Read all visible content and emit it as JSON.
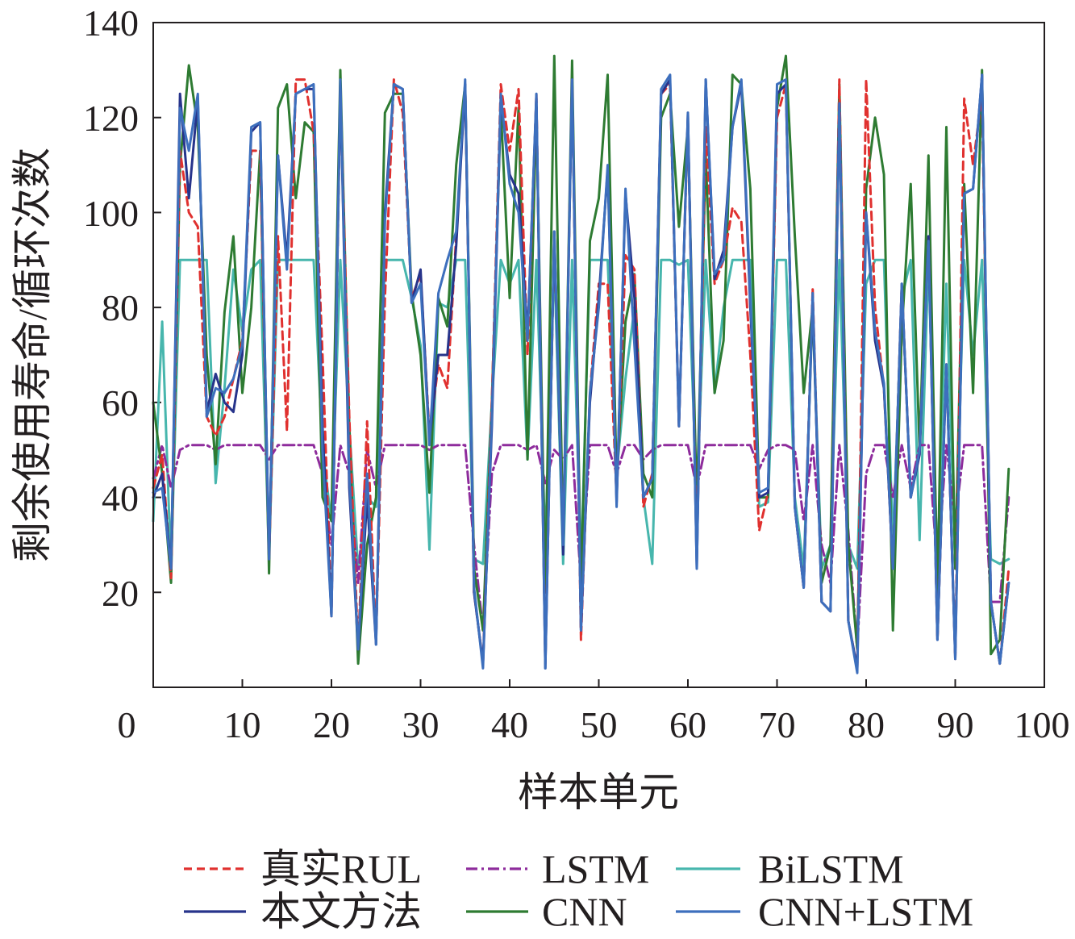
{
  "chart_data": {
    "type": "line",
    "xlabel": "样本单元",
    "ylabel": "剩余使用寿命/循环次数",
    "xlim": [
      0,
      100
    ],
    "ylim": [
      0,
      140
    ],
    "x_ticks": [
      "0",
      "10",
      "20",
      "30",
      "40",
      "50",
      "60",
      "70",
      "80",
      "90",
      "100"
    ],
    "y_ticks": [
      "20",
      "40",
      "60",
      "80",
      "100",
      "120",
      "140"
    ],
    "grid": false,
    "legend": "bottom",
    "x": [
      0,
      1,
      2,
      3,
      4,
      5,
      6,
      7,
      8,
      9,
      10,
      11,
      12,
      13,
      14,
      15,
      16,
      17,
      18,
      19,
      20,
      21,
      22,
      23,
      24,
      25,
      26,
      27,
      28,
      29,
      30,
      31,
      32,
      33,
      34,
      35,
      36,
      37,
      38,
      39,
      40,
      41,
      42,
      43,
      44,
      45,
      46,
      47,
      48,
      49,
      50,
      51,
      52,
      53,
      54,
      55,
      56,
      57,
      58,
      59,
      60,
      61,
      62,
      63,
      64,
      65,
      66,
      67,
      68,
      69,
      70,
      71,
      72,
      73,
      74,
      75,
      76,
      77,
      78,
      79,
      80,
      81,
      82,
      83,
      84,
      85,
      86,
      87,
      88,
      89,
      90,
      91,
      92,
      93,
      94,
      95,
      96
    ],
    "series": [
      {
        "name": "真实RUL",
        "color": "#e0312f",
        "style": "dashed",
        "values": [
          42,
          49,
          23,
          113,
          100,
          97,
          57,
          53,
          57,
          65,
          73,
          113,
          113,
          27,
          95,
          54,
          128,
          128,
          117,
          70,
          15,
          126,
          57,
          8,
          56,
          10,
          82,
          128,
          121,
          82,
          87,
          53,
          68,
          63,
          95,
          127,
          20,
          5,
          60,
          127,
          113,
          126,
          70,
          125,
          5,
          95,
          30,
          128,
          10,
          62,
          85,
          85,
          40,
          91,
          88,
          38,
          45,
          125,
          127,
          55,
          120,
          28,
          118,
          85,
          90,
          101,
          98,
          70,
          33,
          41,
          120,
          127,
          38,
          21,
          84,
          18,
          16,
          128,
          14,
          4,
          128,
          80,
          63,
          25,
          85,
          40,
          50,
          95,
          10,
          68,
          6,
          124,
          110,
          125,
          18,
          5,
          25
        ]
      },
      {
        "name": "LSTM",
        "color": "#8e2c9c",
        "style": "dashdot",
        "values": [
          44,
          51,
          42,
          50,
          51,
          51,
          51,
          50,
          51,
          51,
          51,
          51,
          51,
          48,
          51,
          51,
          51,
          51,
          51,
          45,
          30,
          51,
          45,
          22,
          50,
          42,
          51,
          51,
          51,
          51,
          51,
          50,
          51,
          51,
          51,
          51,
          30,
          12,
          45,
          51,
          51,
          51,
          50,
          51,
          43,
          50,
          48,
          51,
          22,
          51,
          51,
          51,
          45,
          51,
          51,
          48,
          50,
          51,
          51,
          51,
          51,
          42,
          51,
          51,
          51,
          51,
          51,
          51,
          46,
          50,
          51,
          51,
          50,
          35,
          51,
          30,
          22,
          51,
          33,
          8,
          45,
          51,
          51,
          40,
          51,
          42,
          51,
          51,
          25,
          51,
          35,
          51,
          51,
          51,
          18,
          18,
          40
        ]
      },
      {
        "name": "BiLSTM",
        "color": "#47b6ad",
        "style": "solid",
        "values": [
          35,
          77,
          25,
          90,
          90,
          90,
          90,
          43,
          63,
          88,
          75,
          88,
          90,
          27,
          90,
          90,
          90,
          90,
          90,
          50,
          35,
          90,
          55,
          25,
          40,
          38,
          90,
          90,
          90,
          82,
          72,
          29,
          81,
          80,
          90,
          90,
          27,
          26,
          60,
          90,
          85,
          90,
          48,
          90,
          30,
          90,
          26,
          90,
          25,
          90,
          90,
          90,
          45,
          65,
          80,
          40,
          26,
          90,
          90,
          89,
          90,
          40,
          90,
          62,
          80,
          90,
          90,
          90,
          38,
          39,
          90,
          90,
          40,
          25,
          80,
          25,
          30,
          90,
          30,
          25,
          85,
          90,
          90,
          30,
          82,
          90,
          31,
          90,
          25,
          85,
          25,
          90,
          70,
          90,
          27,
          26,
          27
        ]
      },
      {
        "name": "本文方法",
        "color": "#27348b",
        "style": "solid",
        "values": [
          40,
          45,
          25,
          125,
          103,
          124,
          58,
          66,
          60,
          58,
          70,
          117,
          119,
          27,
          112,
          90,
          125,
          126,
          126,
          55,
          15,
          127,
          42,
          8,
          40,
          9,
          100,
          127,
          126,
          81,
          88,
          52,
          70,
          70,
          93,
          127,
          20,
          5,
          55,
          124,
          108,
          104,
          74,
          124,
          4,
          96,
          28,
          128,
          12,
          60,
          82,
          109,
          39,
          104,
          82,
          40,
          44,
          125,
          128,
          55,
          121,
          25,
          128,
          86,
          92,
          118,
          127,
          80,
          40,
          41,
          125,
          127,
          38,
          21,
          82,
          18,
          16,
          123,
          14,
          4,
          100,
          73,
          63,
          25,
          85,
          40,
          49,
          95,
          10,
          68,
          6,
          104,
          105,
          129,
          18,
          5,
          22
        ]
      },
      {
        "name": "CNN",
        "color": "#2e7b32",
        "style": "solid",
        "values": [
          60,
          45,
          22,
          110,
          131,
          118,
          70,
          47,
          79,
          95,
          62,
          80,
          113,
          24,
          122,
          127,
          103,
          119,
          117,
          40,
          35,
          130,
          55,
          5,
          30,
          40,
          121,
          125,
          125,
          83,
          70,
          41,
          82,
          76,
          110,
          127,
          25,
          12,
          60,
          122,
          82,
          122,
          48,
          122,
          20,
          133,
          30,
          132,
          20,
          94,
          103,
          129,
          43,
          77,
          87,
          45,
          40,
          120,
          125,
          97,
          118,
          38,
          112,
          62,
          73,
          129,
          127,
          105,
          40,
          40,
          122,
          133,
          95,
          62,
          80,
          22,
          30,
          127,
          30,
          8,
          105,
          120,
          108,
          12,
          75,
          106,
          50,
          112,
          20,
          118,
          25,
          106,
          62,
          130,
          7,
          10,
          46
        ]
      },
      {
        "name": "CNN+LSTM",
        "color": "#3d6fbd",
        "style": "solid",
        "values": [
          41,
          42,
          25,
          122,
          113,
          125,
          57,
          63,
          62,
          65,
          72,
          118,
          119,
          27,
          112,
          88,
          125,
          126,
          127,
          50,
          15,
          128,
          45,
          8,
          45,
          9,
          98,
          127,
          126,
          81,
          85,
          51,
          83,
          90,
          96,
          128,
          21,
          4,
          57,
          125,
          106,
          100,
          73,
          125,
          4,
          96,
          30,
          128,
          12,
          62,
          80,
          110,
          38,
          105,
          72,
          40,
          44,
          126,
          129,
          55,
          121,
          25,
          128,
          87,
          90,
          118,
          128,
          82,
          41,
          42,
          127,
          128,
          38,
          21,
          83,
          18,
          16,
          123,
          14,
          3,
          100,
          75,
          64,
          25,
          85,
          40,
          50,
          94,
          10,
          68,
          6,
          104,
          105,
          129,
          18,
          5,
          22
        ]
      }
    ]
  }
}
